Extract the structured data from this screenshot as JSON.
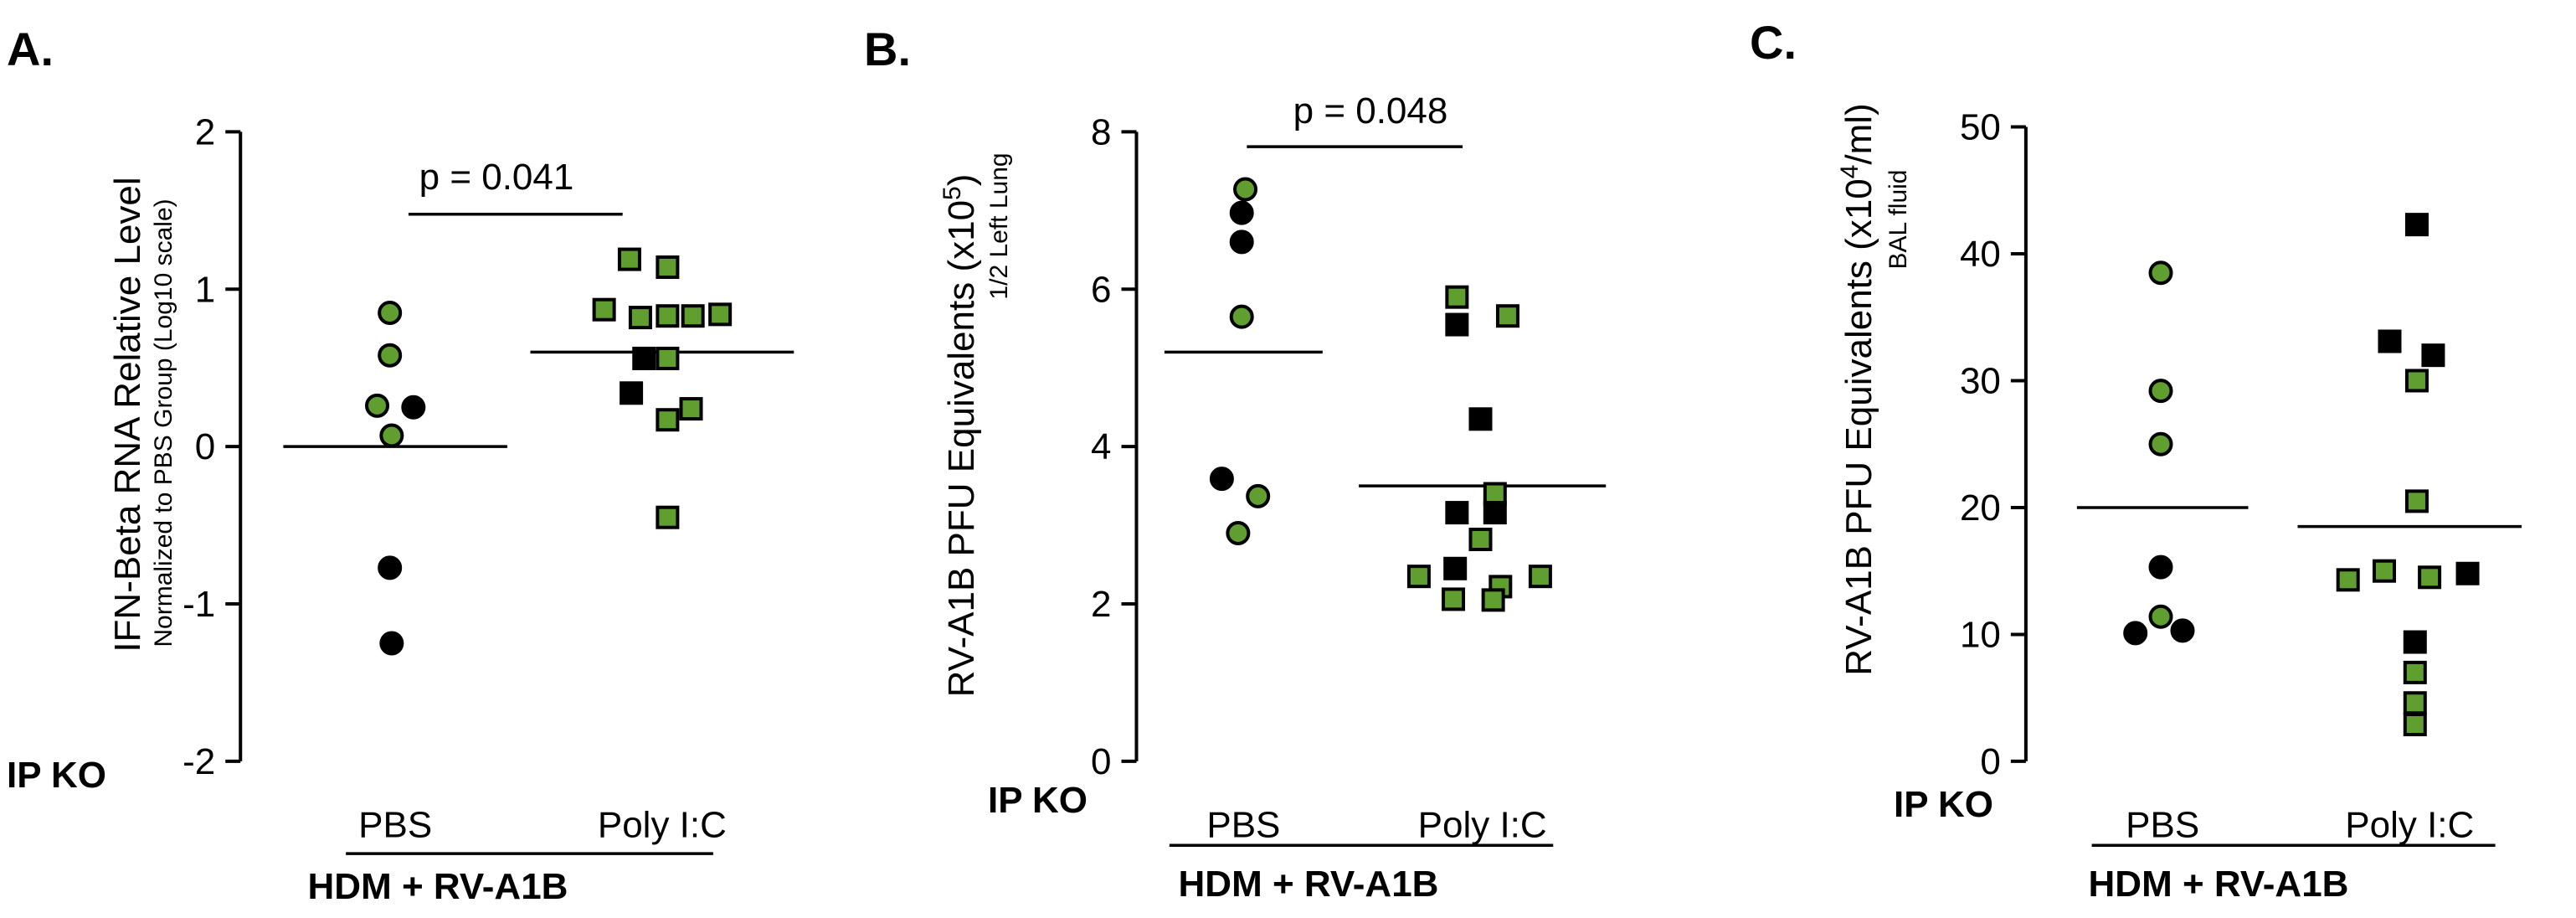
{
  "colors": {
    "green": "#5f9e2f",
    "black": "#000000"
  },
  "chart_data": [
    {
      "panel": "A.",
      "type": "scatter",
      "ylabel": "IFN-Beta RNA Relative Level",
      "ylabel_sub": "Normalized to PBS Group (Log10 scale)",
      "ylim": [
        -2,
        2
      ],
      "yticks": [
        -2,
        -1,
        0,
        1,
        2
      ],
      "ytick_labels": [
        "-2",
        "-1",
        "0",
        "1",
        "2"
      ],
      "row_label": "IP KO",
      "categories": [
        "PBS",
        "Poly I:C"
      ],
      "group_label": "HDM + RV-A1B",
      "pvalue": "p = 0.041",
      "means": [
        0.0,
        0.6
      ],
      "series": [
        {
          "name": "PBS",
          "marker": "circle",
          "points": [
            {
              "x": -0.03,
              "y": 0.85,
              "c": "green"
            },
            {
              "x": -0.03,
              "y": 0.58,
              "c": "green"
            },
            {
              "x": -0.1,
              "y": 0.26,
              "c": "green"
            },
            {
              "x": 0.1,
              "y": 0.25,
              "c": "black"
            },
            {
              "x": -0.02,
              "y": 0.07,
              "c": "green"
            },
            {
              "x": -0.03,
              "y": -0.77,
              "c": "black"
            },
            {
              "x": -0.02,
              "y": -1.25,
              "c": "black"
            }
          ]
        },
        {
          "name": "Poly I:C",
          "marker": "square",
          "points": [
            {
              "x": -0.18,
              "y": 1.19,
              "c": "green"
            },
            {
              "x": 0.03,
              "y": 1.14,
              "c": "green"
            },
            {
              "x": -0.32,
              "y": 0.87,
              "c": "green"
            },
            {
              "x": -0.12,
              "y": 0.82,
              "c": "green"
            },
            {
              "x": 0.03,
              "y": 0.83,
              "c": "green"
            },
            {
              "x": 0.17,
              "y": 0.83,
              "c": "green"
            },
            {
              "x": 0.32,
              "y": 0.84,
              "c": "green"
            },
            {
              "x": -0.1,
              "y": 0.56,
              "c": "black"
            },
            {
              "x": 0.03,
              "y": 0.56,
              "c": "green"
            },
            {
              "x": -0.17,
              "y": 0.34,
              "c": "black"
            },
            {
              "x": 0.16,
              "y": 0.24,
              "c": "green"
            },
            {
              "x": 0.03,
              "y": 0.17,
              "c": "green"
            },
            {
              "x": 0.03,
              "y": -0.45,
              "c": "green"
            }
          ]
        }
      ]
    },
    {
      "panel": "B.",
      "type": "scatter",
      "ylabel": "RV-A1B PFU Equivalents (x10",
      "ylabel_exp": "5",
      "ylabel_close": ")",
      "ylabel_sub": "1/2 Left Lung",
      "ylim": [
        0,
        8
      ],
      "yticks": [
        0,
        2,
        4,
        6,
        8
      ],
      "ytick_labels": [
        "0",
        "2",
        "4",
        "6",
        "8"
      ],
      "row_label": "IP KO",
      "categories": [
        "PBS",
        "Poly I:C"
      ],
      "group_label": "HDM + RV-A1B",
      "pvalue": "p = 0.048",
      "means": [
        5.2,
        3.5
      ],
      "series": [
        {
          "name": "PBS",
          "marker": "circle",
          "points": [
            {
              "x": 0.01,
              "y": 7.27,
              "c": "green"
            },
            {
              "x": -0.01,
              "y": 6.97,
              "c": "black"
            },
            {
              "x": -0.01,
              "y": 6.6,
              "c": "black"
            },
            {
              "x": -0.01,
              "y": 5.65,
              "c": "green"
            },
            {
              "x": -0.12,
              "y": 3.59,
              "c": "black"
            },
            {
              "x": 0.08,
              "y": 3.37,
              "c": "green"
            },
            {
              "x": -0.03,
              "y": 2.9,
              "c": "green"
            }
          ]
        },
        {
          "name": "Poly I:C",
          "marker": "square",
          "points": [
            {
              "x": -0.14,
              "y": 5.9,
              "c": "green"
            },
            {
              "x": 0.14,
              "y": 5.66,
              "c": "green"
            },
            {
              "x": -0.14,
              "y": 5.55,
              "c": "black"
            },
            {
              "x": -0.01,
              "y": 4.35,
              "c": "black"
            },
            {
              "x": 0.07,
              "y": 3.4,
              "c": "green"
            },
            {
              "x": -0.14,
              "y": 3.16,
              "c": "black"
            },
            {
              "x": 0.07,
              "y": 3.16,
              "c": "black"
            },
            {
              "x": -0.01,
              "y": 2.82,
              "c": "green"
            },
            {
              "x": -0.15,
              "y": 2.45,
              "c": "black"
            },
            {
              "x": -0.35,
              "y": 2.35,
              "c": "green"
            },
            {
              "x": 0.32,
              "y": 2.35,
              "c": "green"
            },
            {
              "x": 0.1,
              "y": 2.22,
              "c": "green"
            },
            {
              "x": -0.16,
              "y": 2.06,
              "c": "green"
            },
            {
              "x": 0.06,
              "y": 2.05,
              "c": "green"
            }
          ]
        }
      ]
    },
    {
      "panel": "C.",
      "type": "scatter",
      "ylabel": "RV-A1B PFU Equivalents (x10",
      "ylabel_exp": "4",
      "ylabel_close": "/ml)",
      "ylabel_sub": "BAL fluid",
      "ylim": [
        0,
        50
      ],
      "yticks": [
        0,
        10,
        20,
        30,
        40,
        50
      ],
      "ytick_labels": [
        "0",
        "10",
        "20",
        "30",
        "40",
        "50"
      ],
      "row_label": "IP KO",
      "categories": [
        "PBS",
        "Poly I:C"
      ],
      "group_label": "HDM + RV-A1B",
      "pvalue": "",
      "means": [
        20.0,
        18.5
      ],
      "series": [
        {
          "name": "PBS",
          "marker": "circle",
          "points": [
            {
              "x": -0.01,
              "y": 38.5,
              "c": "green"
            },
            {
              "x": -0.01,
              "y": 29.2,
              "c": "green"
            },
            {
              "x": -0.01,
              "y": 25.0,
              "c": "green"
            },
            {
              "x": -0.01,
              "y": 15.3,
              "c": "black"
            },
            {
              "x": -0.01,
              "y": 11.4,
              "c": "green"
            },
            {
              "x": -0.15,
              "y": 10.1,
              "c": "black"
            },
            {
              "x": 0.11,
              "y": 10.3,
              "c": "black"
            }
          ]
        },
        {
          "name": "Poly I:C",
          "marker": "square",
          "points": [
            {
              "x": 0.04,
              "y": 42.3,
              "c": "black"
            },
            {
              "x": -0.11,
              "y": 33.1,
              "c": "black"
            },
            {
              "x": 0.13,
              "y": 32.0,
              "c": "black"
            },
            {
              "x": 0.04,
              "y": 30.0,
              "c": "green"
            },
            {
              "x": 0.04,
              "y": 20.5,
              "c": "green"
            },
            {
              "x": -0.14,
              "y": 15.0,
              "c": "green"
            },
            {
              "x": 0.32,
              "y": 14.8,
              "c": "black"
            },
            {
              "x": 0.11,
              "y": 14.5,
              "c": "green"
            },
            {
              "x": -0.34,
              "y": 14.3,
              "c": "green"
            },
            {
              "x": 0.03,
              "y": 9.4,
              "c": "black"
            },
            {
              "x": 0.03,
              "y": 7.0,
              "c": "green"
            },
            {
              "x": 0.03,
              "y": 4.6,
              "c": "green"
            },
            {
              "x": 0.03,
              "y": 2.9,
              "c": "green"
            }
          ]
        }
      ]
    }
  ]
}
